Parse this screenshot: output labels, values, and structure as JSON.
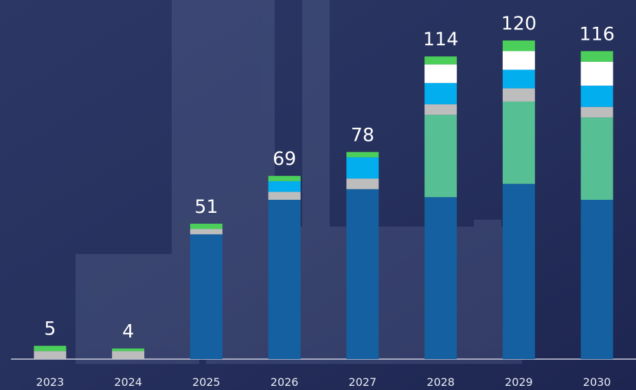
{
  "chart_data": {
    "type": "stacked-bar",
    "categories": [
      "2023",
      "2024",
      "2025",
      "2026",
      "2027",
      "2028",
      "2029",
      "2030"
    ],
    "totals": [
      5,
      4,
      51,
      69,
      78,
      114,
      120,
      116
    ],
    "series": [
      {
        "color": "#1560a1",
        "values": [
          null,
          null,
          47,
          60,
          64,
          61,
          66,
          60
        ]
      },
      {
        "color": "#56bf94",
        "values": [
          null,
          null,
          null,
          null,
          null,
          31,
          31,
          31
        ]
      },
      {
        "color": "#bdbdbd",
        "values": [
          3,
          3,
          2,
          3,
          4,
          4,
          5,
          4
        ]
      },
      {
        "color": "#03aeef",
        "values": [
          null,
          null,
          null,
          4,
          8,
          8,
          7,
          8
        ]
      },
      {
        "color": "#ffffff",
        "values": [
          null,
          null,
          null,
          null,
          null,
          7,
          7,
          9
        ]
      },
      {
        "color": "#4ccf5a",
        "values": [
          2,
          1,
          2,
          2,
          2,
          3,
          4,
          4
        ]
      }
    ]
  }
}
